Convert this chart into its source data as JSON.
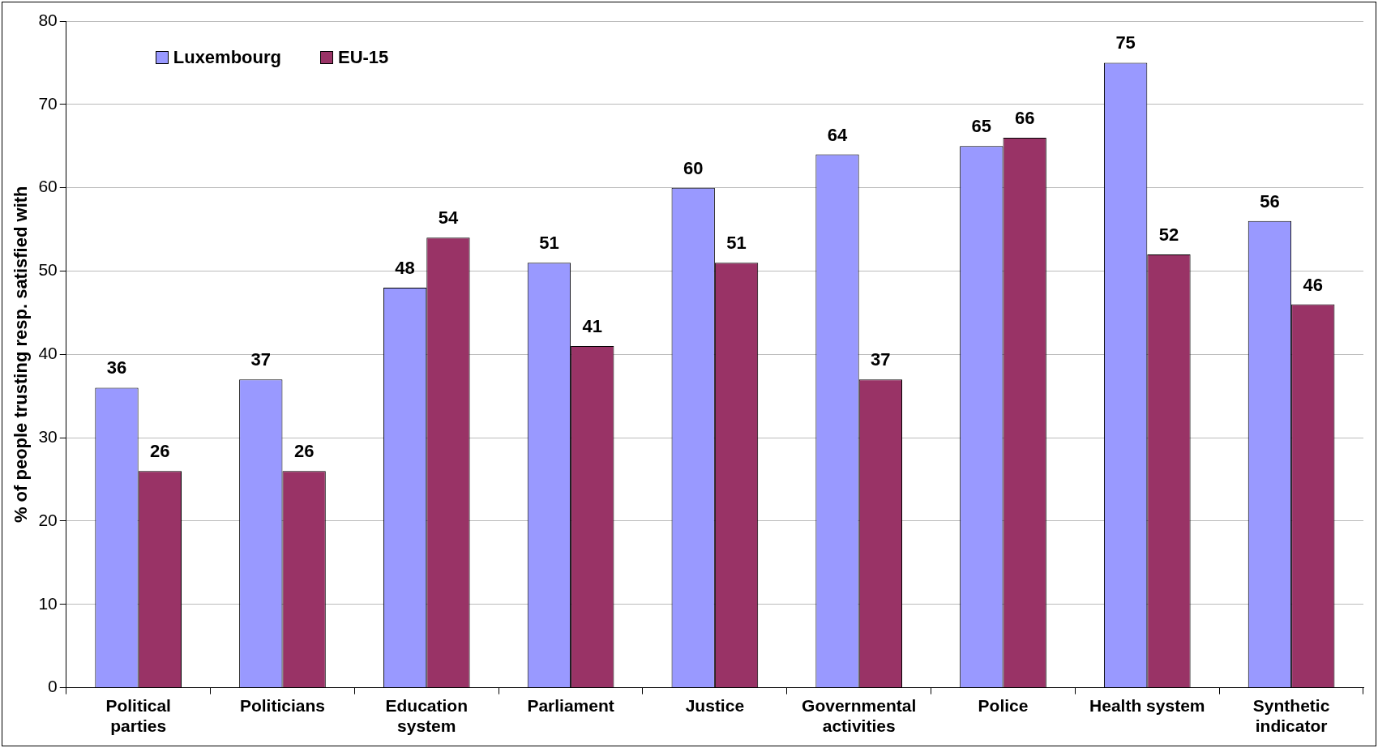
{
  "chart_data": {
    "type": "bar",
    "ylabel": "% of people trusting resp. satisfied with",
    "categories": [
      "Political\nparties",
      "Politicians",
      "Education\nsystem",
      "Parliament",
      "Justice",
      "Governmental\nactivities",
      "Police",
      "Health system",
      "Synthetic\nindicator"
    ],
    "series": [
      {
        "name": "Luxembourg",
        "color": "#9999ff",
        "values": [
          36,
          37,
          48,
          51,
          60,
          64,
          65,
          75,
          56
        ]
      },
      {
        "name": "EU-15",
        "color": "#993366",
        "values": [
          26,
          26,
          54,
          41,
          51,
          37,
          66,
          52,
          46
        ]
      }
    ],
    "ylim": [
      0,
      80
    ],
    "yticks": [
      0,
      10,
      20,
      30,
      40,
      50,
      60,
      70,
      80
    ],
    "grid": "y",
    "legend": "top left",
    "data_labels": true
  }
}
